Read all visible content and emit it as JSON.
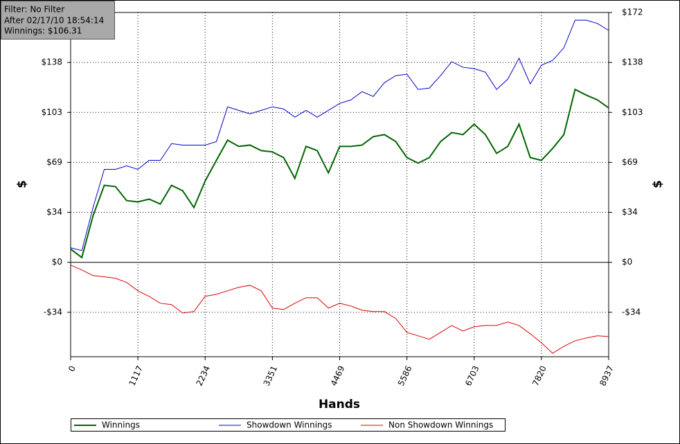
{
  "chart_data": {
    "type": "line",
    "annotations": [
      "Filter: No Filter",
      "After 02/17/10 18:54:14",
      "Winnings: $106.31"
    ],
    "xlabel": "Hands",
    "ylabel": "$",
    "y2label": "$",
    "x": [
      0,
      186,
      372,
      559,
      745,
      931,
      1117,
      1303,
      1490,
      1676,
      1862,
      2048,
      2234,
      2421,
      2607,
      2793,
      2979,
      3165,
      3351,
      3538,
      3724,
      3910,
      4096,
      4282,
      4469,
      4655,
      4841,
      5027,
      5213,
      5400,
      5586,
      5772,
      5958,
      6144,
      6330,
      6517,
      6703,
      6889,
      7075,
      7261,
      7448,
      7634,
      7820,
      8006,
      8192,
      8379,
      8565,
      8751,
      8937
    ],
    "xlim": [
      0,
      8937
    ],
    "xticks": [
      0,
      1117,
      2234,
      3351,
      4469,
      5586,
      6703,
      7820,
      8937
    ],
    "ylim": [
      -65,
      172
    ],
    "yticks": [
      {
        "value": -34.4,
        "label": "-$34"
      },
      {
        "value": 0,
        "label": "$0"
      },
      {
        "value": 34.4,
        "label": "$34"
      },
      {
        "value": 68.8,
        "label": "$69"
      },
      {
        "value": 103.2,
        "label": "$103"
      },
      {
        "value": 137.6,
        "label": "$138"
      },
      {
        "value": 172,
        "label": "$172"
      }
    ],
    "grid": true,
    "legend": "bottom",
    "series": [
      {
        "name": "Winnings",
        "color": "#006400",
        "values": [
          9.1,
          3.3,
          32.0,
          53.0,
          52.1,
          42.5,
          41.6,
          43.5,
          40.1,
          53.0,
          49.2,
          37.7,
          55.9,
          70.2,
          84.1,
          79.8,
          80.7,
          76.9,
          76.0,
          72.1,
          57.8,
          79.8,
          76.9,
          61.6,
          79.8,
          79.8,
          80.7,
          86.5,
          87.9,
          83.1,
          72.1,
          68.3,
          72.1,
          83.1,
          89.3,
          87.9,
          95.1,
          87.9,
          75.0,
          79.8,
          95.1,
          72.1,
          70.2,
          78.4,
          87.9,
          119.0,
          115.1,
          111.8,
          106.3
        ]
      },
      {
        "name": "Showdown Winnings",
        "color": "#0000cc",
        "values": [
          10.0,
          8.1,
          37.7,
          64.0,
          64.0,
          66.4,
          64.0,
          70.2,
          70.2,
          81.7,
          80.7,
          80.7,
          80.7,
          83.1,
          107.0,
          104.6,
          102.2,
          104.6,
          107.0,
          105.6,
          99.9,
          104.6,
          99.9,
          104.6,
          109.4,
          111.8,
          117.5,
          114.2,
          123.7,
          128.5,
          129.5,
          119.0,
          119.9,
          128.5,
          138.1,
          134.3,
          133.3,
          130.9,
          119.0,
          126.1,
          140.5,
          122.8,
          135.7,
          139.0,
          147.6,
          166.7,
          166.7,
          164.4,
          159.6
        ]
      },
      {
        "name": "Non Showdown Winnings",
        "color": "#dd0000",
        "values": [
          -1.9,
          -5.3,
          -9.1,
          -10.0,
          -11.0,
          -13.9,
          -19.6,
          -23.4,
          -28.2,
          -29.1,
          -34.9,
          -33.9,
          -23.4,
          -22.0,
          -19.6,
          -17.2,
          -15.8,
          -19.6,
          -31.5,
          -32.5,
          -28.2,
          -24.4,
          -24.4,
          -31.5,
          -28.2,
          -30.1,
          -33.0,
          -33.9,
          -33.9,
          -38.7,
          -48.3,
          -50.6,
          -53.0,
          -48.3,
          -43.5,
          -47.3,
          -44.4,
          -43.5,
          -43.5,
          -41.1,
          -43.5,
          -49.2,
          -55.4,
          -62.6,
          -57.8,
          -54.0,
          -52.1,
          -50.6,
          -51.1
        ]
      }
    ]
  }
}
